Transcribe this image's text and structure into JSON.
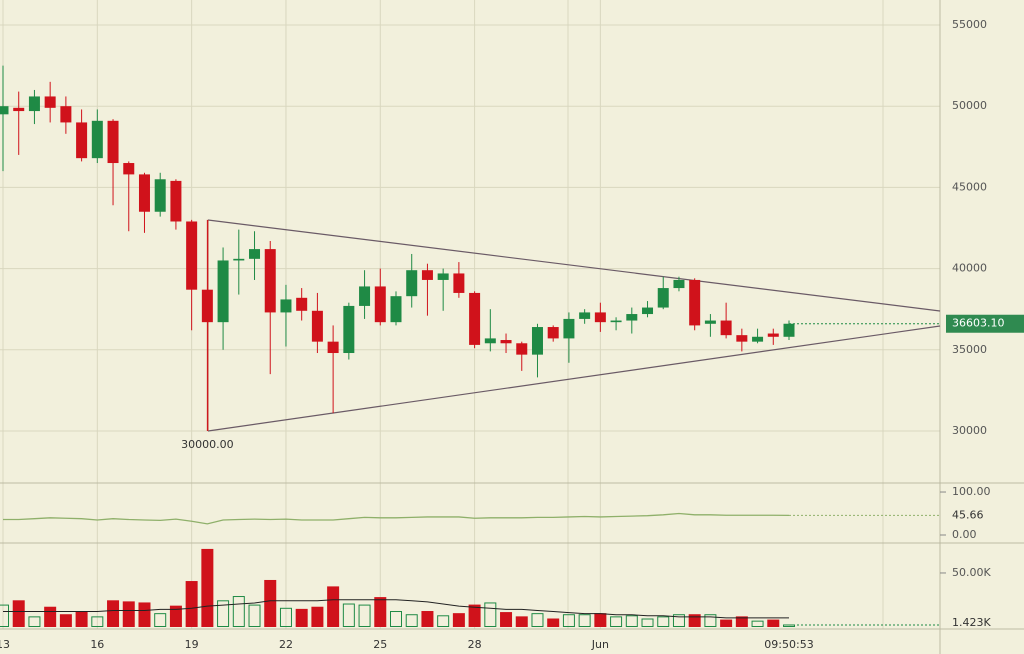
{
  "chart_data": [
    {
      "type": "candlestick",
      "x": [
        "13",
        null,
        null,
        null,
        null,
        null,
        "16",
        null,
        null,
        null,
        null,
        null,
        "19",
        null,
        null,
        null,
        null,
        null,
        "22",
        null,
        null,
        null,
        null,
        null,
        "25",
        null,
        null,
        null,
        null,
        null,
        "28",
        null,
        null,
        null,
        null,
        null,
        null,
        null,
        "Jun",
        null,
        null,
        null,
        null,
        null,
        null,
        null,
        null,
        null,
        null,
        null,
        "09:50:53"
      ],
      "open": [
        49500,
        49900,
        49700,
        50600,
        50000,
        49000,
        46800,
        49100,
        46500,
        45800,
        43500,
        45400,
        42900,
        38700,
        36700,
        40500,
        40600,
        41200,
        37300,
        38200,
        37400,
        35500,
        34800,
        37700,
        38900,
        36700,
        38300,
        39900,
        39300,
        39700,
        38500,
        35400,
        35600,
        35400,
        34700,
        36400,
        35700,
        36900,
        37300,
        36700,
        36800,
        37200,
        37600,
        38800,
        39300,
        36600,
        36800,
        35900,
        35500,
        36000,
        35800
      ],
      "high": [
        52500,
        50900,
        51000,
        51500,
        50600,
        49800,
        49800,
        49200,
        46600,
        45900,
        45900,
        45500,
        43000,
        43000,
        41300,
        42400,
        42300,
        41700,
        39000,
        38800,
        38500,
        36500,
        37900,
        39900,
        40000,
        38600,
        40900,
        40300,
        40000,
        40400,
        38600,
        37500,
        36000,
        35500,
        36600,
        36500,
        37300,
        37500,
        37900,
        37000,
        37600,
        38000,
        39500,
        39500,
        39400,
        37200,
        37900,
        36300,
        36300,
        36300,
        36800
      ],
      "low": [
        46000,
        47000,
        48900,
        49000,
        48300,
        46600,
        46500,
        43900,
        42300,
        42200,
        43200,
        42400,
        36200,
        30000,
        35000,
        38400,
        39300,
        33500,
        35200,
        36800,
        34800,
        31100,
        34400,
        36900,
        36500,
        36500,
        37600,
        37100,
        37400,
        38200,
        35100,
        34900,
        34800,
        33700,
        33300,
        35500,
        34200,
        36600,
        36100,
        36200,
        36000,
        37000,
        37500,
        38600,
        36200,
        35800,
        35700,
        34900,
        35400,
        35300,
        35600
      ],
      "close": [
        50000,
        49700,
        50600,
        49900,
        49000,
        46800,
        49100,
        46500,
        45800,
        43500,
        45500,
        42900,
        38700,
        36700,
        40500,
        40600,
        41200,
        37300,
        38100,
        37400,
        35500,
        34800,
        37700,
        38900,
        36700,
        38300,
        39900,
        39300,
        39700,
        38500,
        35300,
        35700,
        35400,
        34700,
        36400,
        35700,
        36900,
        37300,
        36700,
        36800,
        37200,
        37600,
        38800,
        39300,
        36500,
        36800,
        35900,
        35500,
        35800,
        35800,
        36603.1
      ],
      "up_color": "#1f8a45",
      "down_color": "#d0121b",
      "ylim": [
        26980,
        56540
      ],
      "yticks": [
        30000,
        35000,
        40000,
        45000,
        50000,
        55000
      ],
      "grid": true,
      "last_label": "36603.10",
      "low_label": "30000.00"
    },
    {
      "type": "line",
      "values": [
        36,
        36,
        38,
        40,
        39,
        38,
        35,
        38,
        36,
        35,
        34,
        37,
        32,
        26,
        35,
        36,
        37,
        36,
        37,
        35,
        35,
        35,
        38,
        41,
        40,
        40,
        41,
        42,
        42,
        42,
        39,
        40,
        40,
        40,
        41,
        41,
        42,
        43,
        42,
        43,
        44,
        45,
        47,
        50,
        47,
        47,
        46,
        46,
        46,
        46,
        45.66
      ],
      "color": "#8fb06a",
      "ylim": [
        -11.6,
        114
      ],
      "yticks": [
        {
          "value": 100,
          "label": "100.00"
        },
        {
          "value": 0,
          "label": "0.00"
        }
      ],
      "last_label": "45.66"
    },
    {
      "type": "bar",
      "values": [
        20000,
        24000,
        9000,
        18000,
        11000,
        14000,
        9000,
        24000,
        23000,
        22000,
        12000,
        19000,
        42000,
        72000,
        24000,
        28000,
        20000,
        43000,
        17000,
        16000,
        18000,
        37000,
        21000,
        20000,
        27000,
        14000,
        11000,
        14000,
        10000,
        12000,
        20000,
        22000,
        13000,
        9000,
        12000,
        7000,
        11000,
        11000,
        12000,
        9000,
        10000,
        7000,
        9000,
        11000,
        11000,
        11000,
        6000,
        9000,
        5000,
        6000,
        1423
      ],
      "ma": [
        14000,
        14000,
        14000,
        14000,
        14000,
        14000,
        14000,
        15000,
        15000,
        15000,
        16000,
        16000,
        17000,
        19000,
        20000,
        21000,
        22000,
        24000,
        24000,
        24000,
        24000,
        25000,
        25000,
        25000,
        25000,
        25000,
        24000,
        23000,
        21000,
        19000,
        18000,
        17000,
        16000,
        16000,
        15000,
        14000,
        13000,
        12000,
        12000,
        11000,
        11000,
        10000,
        10000,
        9000,
        9000,
        9000,
        8000,
        8000,
        8000,
        8000,
        8000
      ],
      "ma_color": "#222222",
      "ylim": [
        0,
        75200
      ],
      "yticks": [
        {
          "value": 50000,
          "label": "50.00K"
        }
      ],
      "last_label": "1.423K"
    }
  ]
}
